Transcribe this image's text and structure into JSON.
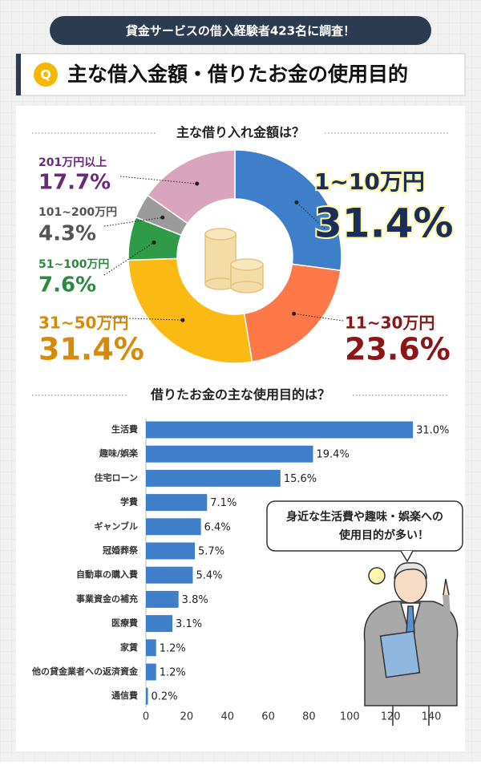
{
  "header": {
    "banner": "貸金サービスの借入経験者423名に調査！",
    "badge": "Q",
    "title": "主な借入金額・借りたお金の使用目的"
  },
  "chart_data": [
    {
      "type": "pie",
      "title": "主な借り入れ金額は？",
      "categories": [
        "1~10万円",
        "11~30万円",
        "31~50万円",
        "51~100万円",
        "101~200万円",
        "201万円以上"
      ],
      "values": [
        31.4,
        23.6,
        31.4,
        7.6,
        4.3,
        17.7
      ],
      "value_labels": [
        "31.4%",
        "23.6%",
        "31.4%",
        "7.6%",
        "4.3%",
        "17.7%"
      ],
      "colors": [
        "#3f7ec8",
        "#ff7848",
        "#fbb913",
        "#2f9a48",
        "#9b9b9b",
        "#d8a5bc"
      ],
      "label_colors": [
        "#1b2d5c",
        "#8a1616",
        "#d68a0c",
        "#2a8a3e",
        "#555555",
        "#6a2a7c"
      ]
    },
    {
      "type": "bar",
      "title": "借りたお金の主な使用目的は？",
      "categories": [
        "生活費",
        "趣味/娯楽",
        "住宅ローン",
        "学費",
        "ギャンブル",
        "冠婚葬祭",
        "自動車の購入費",
        "事業資金の補充",
        "医療費",
        "家賃",
        "他の貸金業者への返済資金",
        "通信費"
      ],
      "values": [
        131,
        82,
        66,
        30,
        27,
        24,
        23,
        16,
        13,
        5,
        5,
        1
      ],
      "value_labels": [
        "31.0%",
        "19.4%",
        "15.6%",
        "7.1%",
        "6.4%",
        "5.7%",
        "5.4%",
        "3.8%",
        "3.1%",
        "1.2%",
        "1.2%",
        "0.2%"
      ],
      "color": "#3f7ec8",
      "xlim": [
        0,
        140
      ],
      "xticks": [
        0,
        20,
        40,
        60,
        80,
        100,
        120,
        140
      ]
    }
  ],
  "bubble": [
    "身近な生活費や趣味・娯楽への",
    "使用目的が多い！"
  ]
}
